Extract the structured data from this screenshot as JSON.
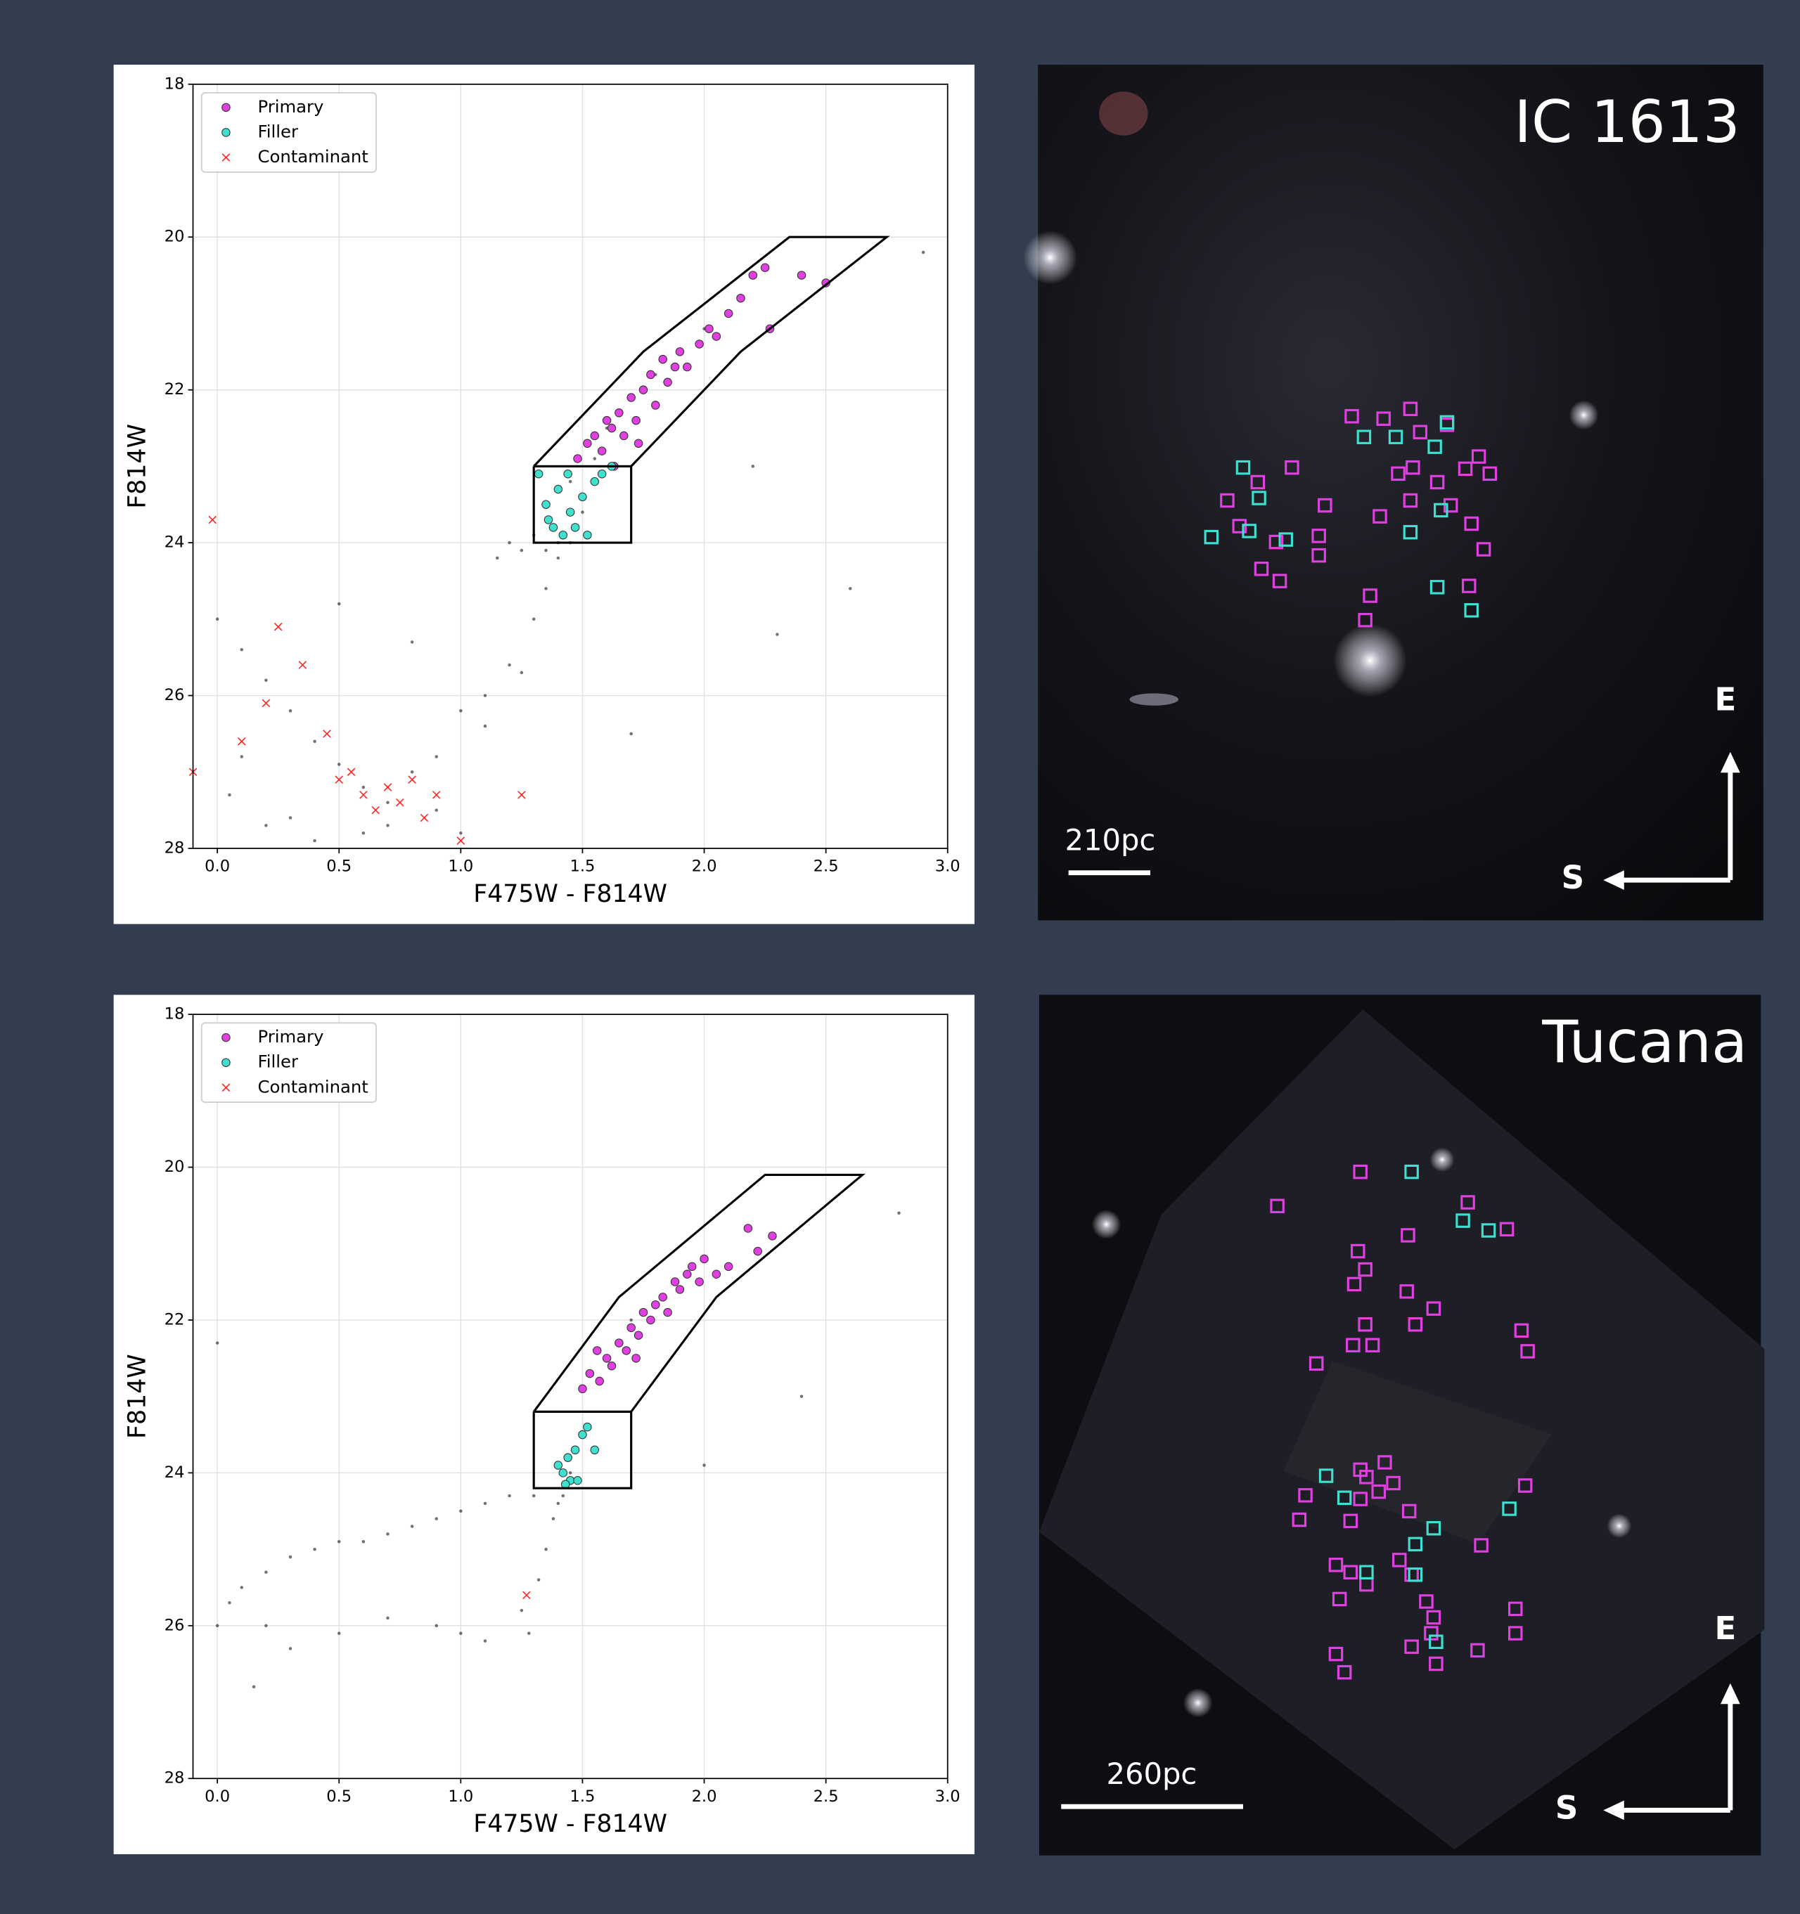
{
  "chart_data": [
    {
      "type": "scatter",
      "xlabel": "F475W - F814W",
      "ylabel": "F814W",
      "xlim": [
        -0.1,
        3.0
      ],
      "ylim": [
        18,
        28
      ],
      "y_inverted": true,
      "xticks": [
        {
          "value": 0,
          "label": "0.0"
        },
        0.5,
        {
          "value": 1,
          "label": "1.0"
        },
        1.5,
        {
          "value": 2,
          "label": "2.0"
        },
        2.5,
        {
          "value": 3,
          "label": "3.0"
        }
      ],
      "yticks": [
        18,
        20,
        22,
        24,
        26,
        28
      ],
      "grid": true,
      "legend": "upper left",
      "series": [
        {
          "color": "#000000",
          "marker": "dot",
          "x": [
            0.0,
            0.1,
            0.2,
            0.3,
            0.4,
            0.5,
            0.6,
            0.7,
            0.8,
            0.9,
            1.0,
            1.1,
            1.2,
            1.3,
            1.35,
            1.4,
            1.45,
            1.5,
            1.55,
            1.25,
            1.2,
            1.15,
            1.3,
            1.35,
            1.4,
            1.6,
            1.8,
            2.0,
            2.3,
            2.6,
            2.9,
            0.3,
            0.6,
            0.9,
            1.0,
            1.1,
            0.1,
            0.05,
            0.2,
            0.4,
            0.7,
            1.7,
            2.2,
            0.5,
            0.8,
            1.25,
            1.45
          ],
          "y": [
            25.0,
            25.4,
            25.8,
            26.2,
            26.6,
            26.9,
            27.2,
            27.4,
            27.0,
            26.8,
            26.2,
            26.4,
            25.6,
            25.0,
            24.6,
            24.2,
            24.0,
            23.6,
            22.9,
            24.1,
            24.0,
            24.2,
            23.9,
            24.1,
            24.0,
            22.5,
            21.8,
            21.2,
            25.2,
            24.6,
            20.2,
            27.6,
            27.8,
            27.5,
            27.8,
            26.0,
            26.8,
            27.3,
            27.7,
            27.9,
            27.7,
            26.5,
            23.0,
            24.8,
            25.3,
            25.7,
            23.2
          ]
        },
        {
          "name": "Primary",
          "color": "#e040e0",
          "marker": "circle",
          "x": [
            1.48,
            1.52,
            1.55,
            1.58,
            1.6,
            1.62,
            1.65,
            1.67,
            1.7,
            1.72,
            1.75,
            1.78,
            1.8,
            1.83,
            1.85,
            1.9,
            1.93,
            1.98,
            2.02,
            2.05,
            2.1,
            2.15,
            2.2,
            2.27,
            2.4,
            2.5,
            1.63,
            1.73,
            1.88,
            2.25
          ],
          "y": [
            22.9,
            22.7,
            22.6,
            22.8,
            22.4,
            22.5,
            22.3,
            22.6,
            22.1,
            22.4,
            22.0,
            21.8,
            22.2,
            21.6,
            21.9,
            21.5,
            21.7,
            21.4,
            21.2,
            21.3,
            21.0,
            20.8,
            20.5,
            21.2,
            20.5,
            20.6,
            23.0,
            22.7,
            21.7,
            20.4
          ]
        },
        {
          "name": "Filler",
          "color": "#40e0d0",
          "marker": "circle",
          "x": [
            1.32,
            1.35,
            1.38,
            1.4,
            1.42,
            1.45,
            1.47,
            1.5,
            1.52,
            1.55,
            1.58,
            1.62,
            1.36,
            1.44
          ],
          "y": [
            23.1,
            23.5,
            23.8,
            23.3,
            23.9,
            23.6,
            23.8,
            23.4,
            23.9,
            23.2,
            23.1,
            23.0,
            23.7,
            23.1
          ]
        },
        {
          "name": "Contaminant",
          "color": "#ff2020",
          "marker": "x",
          "x": [
            -0.02,
            0.25,
            0.35,
            0.45,
            0.55,
            0.6,
            0.65,
            0.7,
            0.75,
            0.8,
            0.85,
            0.9,
            1.0,
            1.25,
            -0.1,
            0.1,
            0.2,
            0.5
          ],
          "y": [
            23.7,
            25.1,
            25.6,
            26.5,
            27.0,
            27.3,
            27.5,
            27.2,
            27.4,
            27.1,
            27.6,
            27.3,
            27.9,
            27.3,
            27.0,
            26.6,
            26.1,
            27.1
          ]
        }
      ],
      "regions": [
        {
          "x": [
            1.3,
            1.75,
            2.35,
            2.75,
            2.15,
            1.7,
            1.3
          ],
          "y": [
            23,
            21.5,
            20,
            20,
            21.5,
            23,
            23
          ]
        },
        {
          "x": [
            1.3,
            1.7,
            1.7,
            1.3,
            1.3
          ],
          "y": [
            23,
            23,
            24,
            24,
            23
          ]
        }
      ]
    },
    {
      "type": "scatter",
      "xlabel": "F475W - F814W",
      "ylabel": "F814W",
      "xlim": [
        -0.1,
        3.0
      ],
      "ylim": [
        18,
        28
      ],
      "y_inverted": true,
      "xticks": [
        {
          "value": 0,
          "label": "0.0"
        },
        0.5,
        {
          "value": 1,
          "label": "1.0"
        },
        1.5,
        {
          "value": 2,
          "label": "2.0"
        },
        2.5,
        {
          "value": 3,
          "label": "3.0"
        }
      ],
      "yticks": [
        18,
        20,
        22,
        24,
        26,
        28
      ],
      "grid": true,
      "legend": "upper left",
      "series": [
        {
          "color": "#000000",
          "marker": "dot",
          "x": [
            0.0,
            0.05,
            0.1,
            0.2,
            0.3,
            0.4,
            0.5,
            0.6,
            0.7,
            0.8,
            0.9,
            1.0,
            1.1,
            1.2,
            1.3,
            1.25,
            1.28,
            1.32,
            1.35,
            1.38,
            1.4,
            1.42,
            1.45,
            1.5,
            1.1,
            1.0,
            0.9,
            0.7,
            0.5,
            0.3,
            0.15,
            1.7,
            2.0,
            2.8,
            0.0,
            2.4,
            0.2
          ],
          "y": [
            26.0,
            25.7,
            25.5,
            25.3,
            25.1,
            25.0,
            24.9,
            24.9,
            24.8,
            24.7,
            24.6,
            24.5,
            24.4,
            24.3,
            24.3,
            25.8,
            26.1,
            25.4,
            25.0,
            24.6,
            24.4,
            24.3,
            24.0,
            23.5,
            26.2,
            26.1,
            26.0,
            25.9,
            26.1,
            26.3,
            26.8,
            22.0,
            23.9,
            20.6,
            22.3,
            23.0,
            26.0
          ]
        },
        {
          "name": "Primary",
          "color": "#e040e0",
          "marker": "circle",
          "x": [
            1.5,
            1.53,
            1.57,
            1.6,
            1.62,
            1.65,
            1.68,
            1.7,
            1.73,
            1.75,
            1.78,
            1.8,
            1.83,
            1.85,
            1.88,
            1.9,
            1.93,
            1.95,
            1.98,
            2.0,
            2.05,
            2.1,
            2.18,
            2.22,
            2.28,
            1.56,
            1.72
          ],
          "y": [
            22.9,
            22.7,
            22.8,
            22.5,
            22.6,
            22.3,
            22.4,
            22.1,
            22.2,
            21.9,
            22.0,
            21.8,
            21.7,
            21.9,
            21.5,
            21.6,
            21.4,
            21.3,
            21.5,
            21.2,
            21.4,
            21.3,
            20.8,
            21.1,
            20.9,
            22.4,
            22.5
          ]
        },
        {
          "name": "Filler",
          "color": "#40e0d0",
          "marker": "circle",
          "x": [
            1.4,
            1.42,
            1.44,
            1.45,
            1.47,
            1.48,
            1.5,
            1.52,
            1.55,
            1.43
          ],
          "y": [
            23.9,
            24.0,
            23.8,
            24.1,
            23.7,
            24.1,
            23.5,
            23.4,
            23.7,
            24.15
          ]
        },
        {
          "name": "Contaminant",
          "color": "#ff2020",
          "marker": "x",
          "x": [
            1.27
          ],
          "y": [
            25.6
          ]
        }
      ],
      "regions": [
        {
          "x": [
            1.3,
            1.65,
            2.25,
            2.65,
            2.05,
            1.7,
            1.3
          ],
          "y": [
            23.2,
            21.7,
            20.1,
            20.1,
            21.7,
            23.2,
            23.2
          ]
        },
        {
          "x": [
            1.3,
            1.7,
            1.7,
            1.3,
            1.3
          ],
          "y": [
            23.2,
            23.2,
            24.2,
            24.2,
            23.2
          ]
        }
      ]
    }
  ],
  "images": [
    {
      "title": "IC 1613",
      "scale_label": "210pc",
      "east": "E",
      "south": "S"
    },
    {
      "title": "Tucana",
      "scale_label": "260pc",
      "east": "E",
      "south": "S"
    }
  ]
}
